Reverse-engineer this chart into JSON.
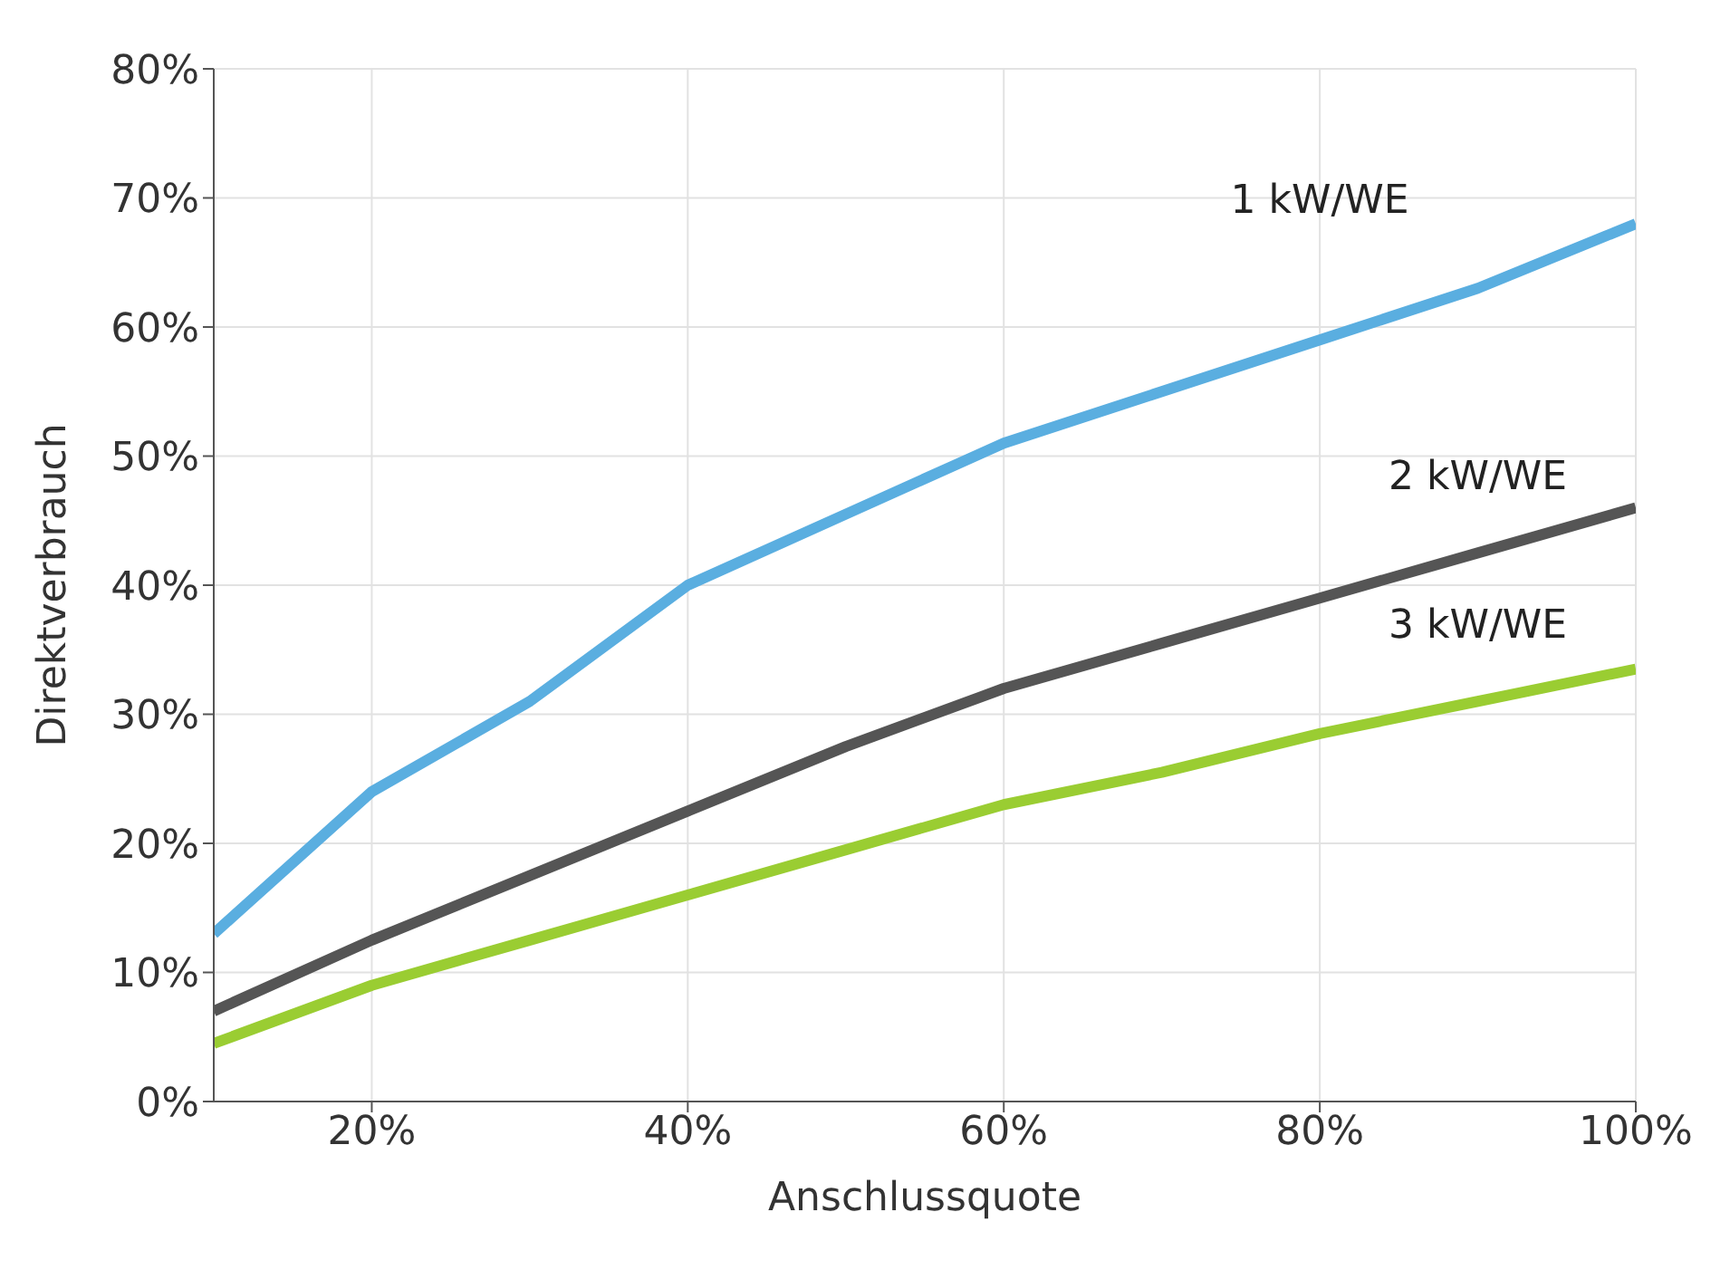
{
  "chart_data": {
    "type": "line",
    "xlabel": "Anschlussquote",
    "ylabel": "Direktverbrauch",
    "x": [
      10,
      20,
      30,
      40,
      50,
      60,
      70,
      80,
      90,
      100
    ],
    "series": [
      {
        "name": "1 kW/WE",
        "color": "#5aaee0",
        "values": [
          13,
          24,
          31,
          40,
          45.5,
          51,
          55,
          59,
          63,
          68
        ]
      },
      {
        "name": "2 kW/WE",
        "color": "#555555",
        "values": [
          7,
          12.5,
          17.5,
          22.5,
          27.5,
          32,
          35.5,
          39,
          42.5,
          46
        ]
      },
      {
        "name": "3 kW/WE",
        "color": "#9acd32",
        "values": [
          4.5,
          9,
          12.5,
          16,
          19.5,
          23,
          25.5,
          28.5,
          31,
          33.5
        ]
      }
    ],
    "xlim": [
      10,
      100
    ],
    "xticks": [
      {
        "value": 20,
        "label": "20%"
      },
      {
        "value": 40,
        "label": "40%"
      },
      {
        "value": 60,
        "label": "60%"
      },
      {
        "value": 80,
        "label": "80%"
      },
      {
        "value": 100,
        "label": "100%"
      }
    ],
    "ylim": [
      0,
      80
    ],
    "yticks": [
      {
        "value": 0,
        "label": "0%"
      },
      {
        "value": 10,
        "label": "10%"
      },
      {
        "value": 20,
        "label": "20%"
      },
      {
        "value": 30,
        "label": "30%"
      },
      {
        "value": 40,
        "label": "40%"
      },
      {
        "value": 50,
        "label": "50%"
      },
      {
        "value": 60,
        "label": "60%"
      },
      {
        "value": 70,
        "label": "70%"
      },
      {
        "value": 80,
        "label": "80%"
      }
    ],
    "grid": true,
    "legend": false,
    "marker": "none",
    "line_style": "solid"
  }
}
